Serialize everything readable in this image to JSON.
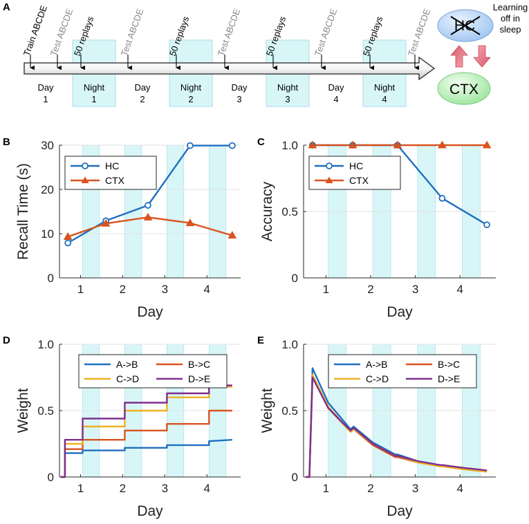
{
  "panel_labels": {
    "a": "A",
    "b": "B",
    "c": "C",
    "d": "D",
    "e": "E"
  },
  "colors": {
    "hc": "#1f6fbf",
    "ctx": "#d9531e",
    "ab": "#1f6fbf",
    "bc": "#d9531e",
    "cd": "#edb120",
    "de": "#7e2f8e",
    "night": "#d8f6f8",
    "grid": "#e2e2e2"
  },
  "timeline": {
    "events": [
      {
        "text": "Train ABCDE",
        "color": "#000000"
      },
      {
        "text": "Test ABCDE",
        "color": "#8a8a8a"
      },
      {
        "text": "50 replays",
        "color": "#000000"
      },
      {
        "text": "Test ABCDE",
        "color": "#8a8a8a"
      },
      {
        "text": "50 replays",
        "color": "#000000"
      },
      {
        "text": "Test ABCDE",
        "color": "#8a8a8a"
      },
      {
        "text": "50 replays",
        "color": "#000000"
      },
      {
        "text": "Test ABCDE",
        "color": "#8a8a8a"
      },
      {
        "text": "50 replays",
        "color": "#000000"
      },
      {
        "text": "Test ABCDE",
        "color": "#8a8a8a"
      }
    ],
    "periods": [
      {
        "name": "Day",
        "num": "1"
      },
      {
        "name": "Night",
        "num": "1"
      },
      {
        "name": "Day",
        "num": "2"
      },
      {
        "name": "Night",
        "num": "2"
      },
      {
        "name": "Day",
        "num": "3"
      },
      {
        "name": "Night",
        "num": "3"
      },
      {
        "name": "Day",
        "num": "4"
      },
      {
        "name": "Night",
        "num": "4"
      }
    ],
    "hc_label": "HC",
    "ctx_label": "CTX",
    "note_lines": [
      "Learning",
      "off in",
      "sleep"
    ]
  },
  "chart_data": [
    {
      "panel": "B",
      "type": "line",
      "xlabel": "Day",
      "ylabel": "Recall Time (s)",
      "x": [
        0.7,
        1.6,
        2.6,
        3.6,
        4.6
      ],
      "xlim": [
        0.5,
        4.8
      ],
      "ylim": [
        0,
        30
      ],
      "xticks": [
        1,
        2,
        3,
        4
      ],
      "yticks": [
        0,
        10,
        20,
        30
      ],
      "series": [
        {
          "name": "HC",
          "marker": "circle",
          "values": [
            7.9,
            12.9,
            16.4,
            29.9,
            29.9
          ]
        },
        {
          "name": "CTX",
          "marker": "triangle",
          "values": [
            9.3,
            12.3,
            13.7,
            12.4,
            9.6
          ]
        }
      ],
      "legend": "top-left",
      "night_intervals": [
        [
          1.05,
          1.45
        ],
        [
          2.05,
          2.45
        ],
        [
          3.05,
          3.45
        ],
        [
          4.05,
          4.45
        ]
      ]
    },
    {
      "panel": "C",
      "type": "line",
      "xlabel": "Day",
      "ylabel": "Accuracy",
      "x": [
        0.7,
        1.6,
        2.6,
        3.6,
        4.6
      ],
      "xlim": [
        0.5,
        4.8
      ],
      "ylim": [
        0,
        1
      ],
      "xticks": [
        1,
        2,
        3,
        4
      ],
      "yticks": [
        0,
        0.5,
        1.0
      ],
      "series": [
        {
          "name": "HC",
          "marker": "circle",
          "values": [
            1.0,
            1.0,
            1.0,
            0.6,
            0.4
          ]
        },
        {
          "name": "CTX",
          "marker": "triangle",
          "values": [
            1.0,
            1.0,
            1.0,
            1.0,
            1.0
          ]
        }
      ],
      "legend": "top-left",
      "night_intervals": [
        [
          1.05,
          1.45
        ],
        [
          2.05,
          2.45
        ],
        [
          3.05,
          3.45
        ],
        [
          4.05,
          4.45
        ]
      ]
    },
    {
      "panel": "D",
      "type": "line",
      "xlabel": "Day",
      "ylabel": "Weight",
      "xlim": [
        0.5,
        4.8
      ],
      "ylim": [
        0,
        1
      ],
      "xticks": [
        1,
        2,
        3,
        4
      ],
      "yticks": [
        0,
        0.5,
        1.0
      ],
      "series": [
        {
          "name": "A->B",
          "x": [
            0.53,
            0.63,
            0.63,
            1.05,
            1.05,
            2.05,
            2.05,
            3.05,
            3.05,
            4.05,
            4.05,
            4.6
          ],
          "values": [
            0,
            0,
            0.18,
            0.18,
            0.2,
            0.2,
            0.22,
            0.22,
            0.24,
            0.24,
            0.27,
            0.28
          ]
        },
        {
          "name": "B->C",
          "x": [
            0.53,
            0.63,
            0.63,
            1.05,
            1.05,
            2.05,
            2.05,
            3.05,
            3.05,
            4.05,
            4.05,
            4.6
          ],
          "values": [
            0,
            0,
            0.21,
            0.21,
            0.28,
            0.28,
            0.35,
            0.35,
            0.4,
            0.4,
            0.5,
            0.5
          ]
        },
        {
          "name": "C->D",
          "x": [
            0.53,
            0.63,
            0.63,
            1.05,
            1.05,
            2.05,
            2.05,
            3.05,
            3.05,
            4.05,
            4.05,
            4.6
          ],
          "values": [
            0,
            0,
            0.25,
            0.25,
            0.38,
            0.38,
            0.5,
            0.5,
            0.6,
            0.6,
            0.68,
            0.68
          ]
        },
        {
          "name": "D->E",
          "x": [
            0.53,
            0.63,
            0.63,
            1.05,
            1.05,
            2.05,
            2.05,
            3.05,
            3.05,
            4.05,
            4.05,
            4.6
          ],
          "values": [
            0,
            0,
            0.28,
            0.28,
            0.44,
            0.44,
            0.56,
            0.56,
            0.63,
            0.63,
            0.69,
            0.69
          ]
        }
      ],
      "legend": "top",
      "night_intervals": [
        [
          1.05,
          1.45
        ],
        [
          2.05,
          2.45
        ],
        [
          3.05,
          3.45
        ],
        [
          4.05,
          4.45
        ]
      ]
    },
    {
      "panel": "E",
      "type": "line",
      "xlabel": "Day",
      "ylabel": "Weight",
      "xlim": [
        0.5,
        4.8
      ],
      "ylim": [
        0,
        1
      ],
      "xticks": [
        1,
        2,
        3,
        4
      ],
      "yticks": [
        0,
        0.5,
        1.0
      ],
      "series": [
        {
          "name": "A->B",
          "x": [
            0.55,
            0.63,
            0.7,
            1.05,
            1.55,
            1.62,
            2.05,
            2.55,
            2.6,
            3.05,
            3.55,
            3.6,
            4.05,
            4.6
          ],
          "values": [
            0,
            0,
            0.82,
            0.56,
            0.36,
            0.38,
            0.26,
            0.17,
            0.17,
            0.12,
            0.09,
            0.09,
            0.07,
            0.04
          ]
        },
        {
          "name": "B->C",
          "x": [
            0.55,
            0.63,
            0.7,
            1.05,
            1.55,
            1.62,
            2.05,
            2.55,
            2.6,
            3.05,
            3.55,
            3.6,
            4.05,
            4.6
          ],
          "values": [
            0,
            0,
            0.76,
            0.52,
            0.34,
            0.36,
            0.24,
            0.15,
            0.15,
            0.11,
            0.08,
            0.08,
            0.06,
            0.04
          ]
        },
        {
          "name": "C->D",
          "x": [
            0.55,
            0.63,
            0.7,
            1.05,
            1.55,
            1.62,
            2.05,
            2.55,
            2.6,
            3.05,
            3.55,
            3.6,
            4.05,
            4.6
          ],
          "values": [
            0,
            0,
            0.77,
            0.53,
            0.34,
            0.36,
            0.25,
            0.16,
            0.16,
            0.11,
            0.08,
            0.08,
            0.06,
            0.04
          ]
        },
        {
          "name": "D->E",
          "x": [
            0.55,
            0.63,
            0.7,
            1.05,
            1.55,
            1.62,
            2.05,
            2.55,
            2.6,
            3.05,
            3.55,
            3.6,
            4.05,
            4.6
          ],
          "values": [
            0,
            0,
            0.75,
            0.52,
            0.35,
            0.37,
            0.25,
            0.16,
            0.16,
            0.12,
            0.09,
            0.09,
            0.07,
            0.05
          ]
        }
      ],
      "legend": "top",
      "night_intervals": [
        [
          1.05,
          1.45
        ],
        [
          2.05,
          2.45
        ],
        [
          3.05,
          3.45
        ],
        [
          4.05,
          4.45
        ]
      ]
    }
  ]
}
